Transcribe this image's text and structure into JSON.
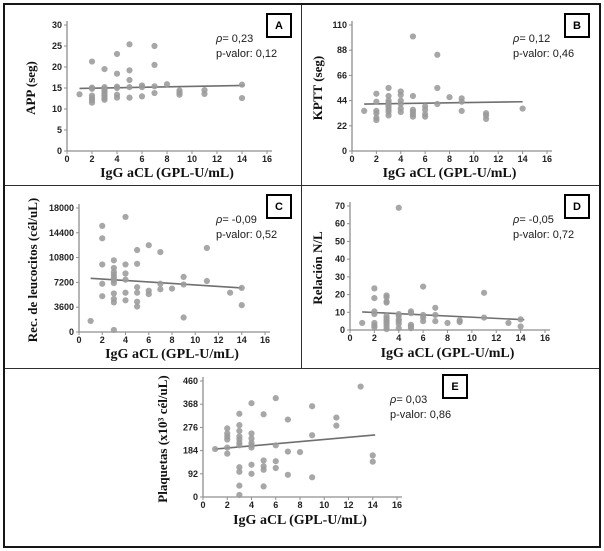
{
  "colors": {
    "dot": "#9b9b9b",
    "trend": "#6f6f6f",
    "axis": "#8f8f8f",
    "tick_text": "#222222"
  },
  "chart_data": [
    {
      "type": "scatter",
      "panel_label": "A",
      "xlabel": "IgG aCL (GPL-U/mL)",
      "ylabel": "APP (seg)",
      "xlim": [
        0,
        16
      ],
      "ylim": [
        0,
        30
      ],
      "xticks": [
        0,
        2,
        4,
        6,
        8,
        10,
        12,
        14,
        16
      ],
      "yticks": [
        0,
        5,
        10,
        15,
        20,
        25,
        30
      ],
      "annotations": {
        "rho": "ρ= 0,23",
        "p": "p-valor: 0,12"
      },
      "legend": "none",
      "grid": false,
      "points": [
        [
          1,
          13.5
        ],
        [
          2,
          21.3
        ],
        [
          2,
          15.1
        ],
        [
          2,
          14.8
        ],
        [
          2,
          13.2
        ],
        [
          2,
          12.6
        ],
        [
          2,
          12.1
        ],
        [
          2,
          11.5
        ],
        [
          3,
          19.5
        ],
        [
          3,
          15.2
        ],
        [
          3,
          14.8
        ],
        [
          3,
          14.4
        ],
        [
          3,
          14.0
        ],
        [
          3,
          13.5
        ],
        [
          3,
          13.1
        ],
        [
          3,
          12.6
        ],
        [
          3,
          12.2
        ],
        [
          4,
          23.1
        ],
        [
          4,
          18.4
        ],
        [
          4,
          15.3
        ],
        [
          4,
          15.0
        ],
        [
          4,
          13.4
        ],
        [
          4,
          12.7
        ],
        [
          5,
          25.4
        ],
        [
          5,
          19.2
        ],
        [
          5,
          16.9
        ],
        [
          5,
          15.2
        ],
        [
          5,
          12.7
        ],
        [
          6,
          15.6
        ],
        [
          6,
          15.2
        ],
        [
          6,
          13.0
        ],
        [
          7,
          25.0
        ],
        [
          7,
          20.5
        ],
        [
          7,
          15.4
        ],
        [
          7,
          13.8
        ],
        [
          8,
          15.9
        ],
        [
          9,
          14.4
        ],
        [
          9,
          13.9
        ],
        [
          9,
          13.4
        ],
        [
          11,
          14.5
        ],
        [
          11,
          13.6
        ],
        [
          14,
          15.8
        ],
        [
          14,
          12.6
        ]
      ],
      "trend": {
        "x": [
          1,
          14.2
        ],
        "y": [
          14.9,
          15.6
        ]
      }
    },
    {
      "type": "scatter",
      "panel_label": "B",
      "xlabel": "IgG aCL (GPL-U/mL)",
      "ylabel": "KPTT (seg)",
      "xlim": [
        0,
        16
      ],
      "ylim": [
        0,
        110
      ],
      "xticks": [
        0,
        2,
        4,
        6,
        8,
        10,
        12,
        14,
        16
      ],
      "yticks": [
        0,
        22,
        44,
        66,
        88,
        110
      ],
      "annotations": {
        "rho": "ρ= 0,12",
        "p": "p-valor: 0,46"
      },
      "legend": "none",
      "grid": false,
      "points": [
        [
          1,
          35
        ],
        [
          2,
          50
        ],
        [
          2,
          43
        ],
        [
          2,
          35
        ],
        [
          2,
          33
        ],
        [
          2,
          29
        ],
        [
          2,
          27
        ],
        [
          3,
          55
        ],
        [
          3,
          48
        ],
        [
          3,
          44
        ],
        [
          3,
          42
        ],
        [
          3,
          40
        ],
        [
          3,
          38
        ],
        [
          3,
          36
        ],
        [
          3,
          34
        ],
        [
          3,
          31
        ],
        [
          4,
          52
        ],
        [
          4,
          49
        ],
        [
          4,
          44
        ],
        [
          4,
          41
        ],
        [
          4,
          37
        ],
        [
          4,
          34
        ],
        [
          5,
          100
        ],
        [
          5,
          48
        ],
        [
          5,
          36
        ],
        [
          5,
          34
        ],
        [
          5,
          32
        ],
        [
          5,
          30
        ],
        [
          6,
          39
        ],
        [
          6,
          36
        ],
        [
          6,
          32
        ],
        [
          6,
          30
        ],
        [
          7,
          84
        ],
        [
          7,
          55
        ],
        [
          7,
          41
        ],
        [
          8,
          47
        ],
        [
          9,
          46
        ],
        [
          9,
          43
        ],
        [
          9,
          35
        ],
        [
          11,
          33
        ],
        [
          11,
          31
        ],
        [
          11,
          28
        ],
        [
          14,
          37
        ]
      ],
      "trend": {
        "x": [
          1,
          14
        ],
        "y": [
          41,
          43
        ]
      }
    },
    {
      "type": "scatter",
      "panel_label": "C",
      "xlabel": "IgG aCL (GPL-U/mL)",
      "ylabel": "Rec. de leucocitos (cél/uL)",
      "xlim": [
        0,
        16
      ],
      "ylim": [
        0,
        18000
      ],
      "xticks": [
        0,
        2,
        4,
        6,
        8,
        10,
        12,
        14,
        16
      ],
      "yticks": [
        0,
        3600,
        7200,
        10800,
        14400,
        18000
      ],
      "annotations": {
        "rho": "ρ= -0,09",
        "p": "p-valor: 0,52"
      },
      "legend": "none",
      "grid": false,
      "points": [
        [
          1,
          1600
        ],
        [
          2,
          15400
        ],
        [
          2,
          13600
        ],
        [
          2,
          9800
        ],
        [
          2,
          7000
        ],
        [
          2,
          5200
        ],
        [
          3,
          10400
        ],
        [
          3,
          9300
        ],
        [
          3,
          8700
        ],
        [
          3,
          8300
        ],
        [
          3,
          7900
        ],
        [
          3,
          7500
        ],
        [
          3,
          7100
        ],
        [
          3,
          5600
        ],
        [
          3,
          4800
        ],
        [
          3,
          4300
        ],
        [
          3,
          300
        ],
        [
          4,
          16700
        ],
        [
          4,
          9800
        ],
        [
          4,
          8500
        ],
        [
          4,
          7600
        ],
        [
          4,
          5700
        ],
        [
          4,
          4600
        ],
        [
          5,
          11900
        ],
        [
          5,
          9900
        ],
        [
          5,
          6500
        ],
        [
          5,
          5700
        ],
        [
          5,
          4400
        ],
        [
          5,
          3700
        ],
        [
          6,
          12600
        ],
        [
          6,
          6000
        ],
        [
          6,
          5500
        ],
        [
          7,
          11600
        ],
        [
          7,
          7000
        ],
        [
          7,
          6200
        ],
        [
          8,
          6300
        ],
        [
          9,
          8000
        ],
        [
          9,
          6900
        ],
        [
          9,
          2100
        ],
        [
          11,
          12200
        ],
        [
          11,
          7400
        ],
        [
          13,
          5700
        ],
        [
          14,
          6400
        ],
        [
          14,
          3900
        ]
      ],
      "trend": {
        "x": [
          1,
          14
        ],
        "y": [
          7800,
          6400
        ]
      }
    },
    {
      "type": "scatter",
      "panel_label": "D",
      "xlabel": "IgG aCL (GPL-U/mL)",
      "ylabel": "Relación N/L",
      "xlim": [
        0,
        16
      ],
      "ylim": [
        0,
        70
      ],
      "xticks": [
        0,
        2,
        4,
        6,
        8,
        10,
        12,
        14,
        16
      ],
      "yticks": [
        0,
        10,
        20,
        30,
        40,
        50,
        60,
        70
      ],
      "annotations": {
        "rho": "ρ= -0,05",
        "p": "p-valor: 0,72"
      },
      "legend": "none",
      "grid": false,
      "points": [
        [
          1,
          4
        ],
        [
          2,
          23.5
        ],
        [
          2,
          18
        ],
        [
          2,
          10.5
        ],
        [
          2,
          9
        ],
        [
          2,
          4
        ],
        [
          2,
          2.5
        ],
        [
          2,
          1.5
        ],
        [
          3,
          19.5
        ],
        [
          3,
          18.5
        ],
        [
          3,
          16
        ],
        [
          3,
          15.5
        ],
        [
          3,
          8
        ],
        [
          3,
          6.5
        ],
        [
          3,
          5.5
        ],
        [
          3,
          4.5
        ],
        [
          3,
          3.5
        ],
        [
          3,
          2
        ],
        [
          3,
          0.5
        ],
        [
          4,
          69
        ],
        [
          4,
          9
        ],
        [
          4,
          8
        ],
        [
          4,
          6
        ],
        [
          4,
          5
        ],
        [
          4,
          3.5
        ],
        [
          4,
          1
        ],
        [
          5,
          10.5
        ],
        [
          5,
          9.5
        ],
        [
          5,
          3
        ],
        [
          5,
          2
        ],
        [
          5,
          1
        ],
        [
          6,
          24.5
        ],
        [
          6,
          8.5
        ],
        [
          6,
          7
        ],
        [
          6,
          5
        ],
        [
          7,
          12.5
        ],
        [
          7,
          8.5
        ],
        [
          7,
          5
        ],
        [
          8,
          4
        ],
        [
          9,
          5.5
        ],
        [
          9,
          4.5
        ],
        [
          11,
          21
        ],
        [
          11,
          7
        ],
        [
          13,
          4
        ],
        [
          14,
          6
        ],
        [
          14,
          2
        ]
      ],
      "trend": {
        "x": [
          1,
          14.3
        ],
        "y": [
          10.2,
          5.8
        ]
      }
    },
    {
      "type": "scatter",
      "panel_label": "E",
      "xlabel": "IgG aCL (GPL-U/mL)",
      "ylabel": "Plaquetas (x10³ cél/uL)",
      "xlim": [
        0,
        16
      ],
      "ylim": [
        0,
        460
      ],
      "xticks": [
        0,
        2,
        4,
        6,
        8,
        10,
        12,
        14,
        16
      ],
      "yticks": [
        0,
        92,
        184,
        276,
        368,
        460
      ],
      "annotations": {
        "rho": "ρ= 0,03",
        "p": "p-valor: 0,86"
      },
      "legend": "none",
      "grid": false,
      "points": [
        [
          1,
          190
        ],
        [
          2,
          272
        ],
        [
          2,
          252
        ],
        [
          2,
          240
        ],
        [
          2,
          228
        ],
        [
          2,
          196
        ],
        [
          2,
          172
        ],
        [
          3,
          330
        ],
        [
          3,
          285
        ],
        [
          3,
          262
        ],
        [
          3,
          240
        ],
        [
          3,
          228
        ],
        [
          3,
          215
        ],
        [
          3,
          205
        ],
        [
          3,
          118
        ],
        [
          3,
          100
        ],
        [
          3,
          45
        ],
        [
          3,
          8
        ],
        [
          4,
          372
        ],
        [
          4,
          252
        ],
        [
          4,
          232
        ],
        [
          4,
          215
        ],
        [
          4,
          205
        ],
        [
          4,
          196
        ],
        [
          4,
          128
        ],
        [
          4,
          92
        ],
        [
          5,
          328
        ],
        [
          5,
          145
        ],
        [
          5,
          122
        ],
        [
          5,
          108
        ],
        [
          5,
          42
        ],
        [
          6,
          392
        ],
        [
          6,
          205
        ],
        [
          6,
          142
        ],
        [
          6,
          115
        ],
        [
          7,
          307
        ],
        [
          7,
          180
        ],
        [
          7,
          88
        ],
        [
          8,
          178
        ],
        [
          9,
          360
        ],
        [
          9,
          245
        ],
        [
          9,
          78
        ],
        [
          11,
          315
        ],
        [
          11,
          283
        ],
        [
          13,
          438
        ],
        [
          14,
          165
        ],
        [
          14,
          140
        ]
      ],
      "trend": {
        "x": [
          1,
          14.2
        ],
        "y": [
          190,
          246
        ]
      }
    }
  ]
}
